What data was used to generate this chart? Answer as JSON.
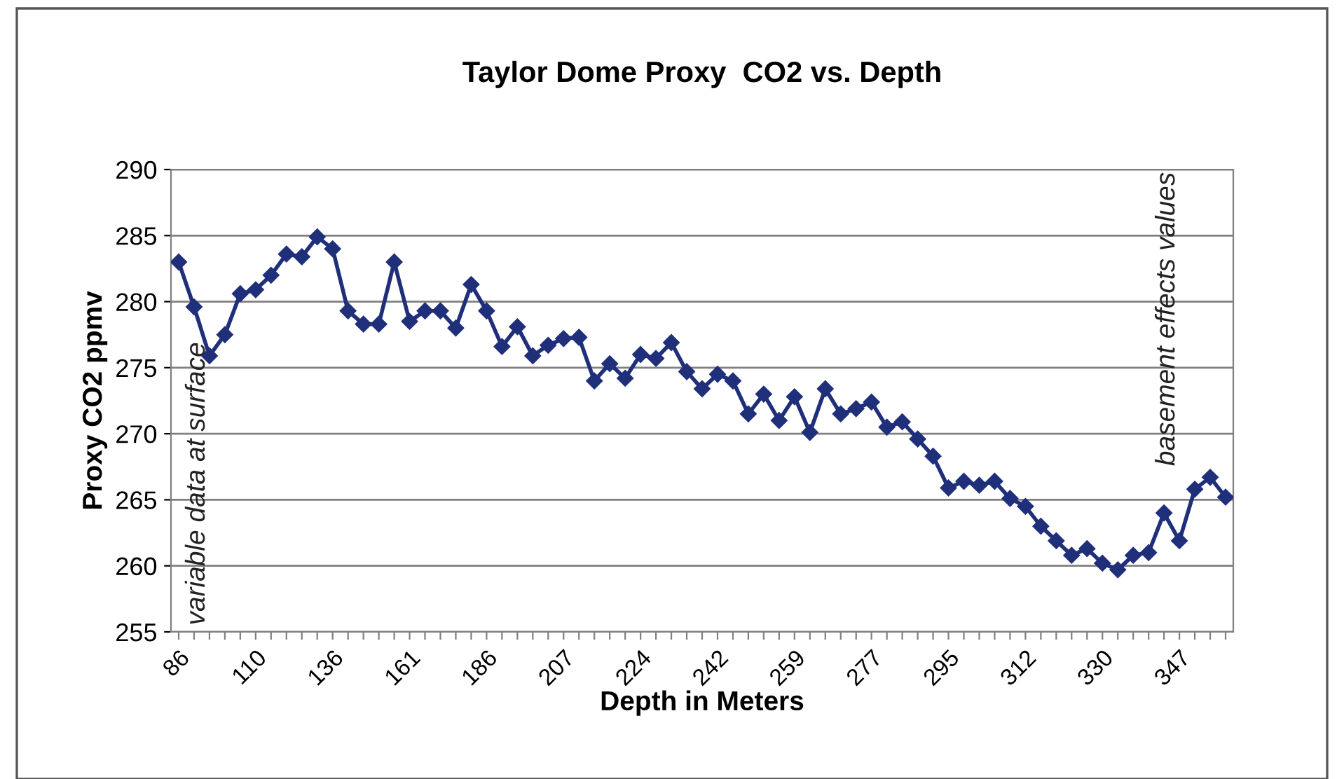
{
  "chart_data": {
    "type": "line",
    "title": "Taylor Dome Proxy  CO2 vs. Depth",
    "xlabel": "Depth in Meters",
    "ylabel": "Proxy CO2 ppmv",
    "categories": [
      "86",
      null,
      null,
      null,
      null,
      "110",
      null,
      null,
      null,
      null,
      "136",
      null,
      null,
      null,
      null,
      "161",
      null,
      null,
      null,
      null,
      "186",
      null,
      null,
      null,
      null,
      "207",
      null,
      null,
      null,
      null,
      "224",
      null,
      null,
      null,
      null,
      "242",
      null,
      null,
      null,
      null,
      "259",
      null,
      null,
      null,
      null,
      "277",
      null,
      null,
      null,
      null,
      "295",
      null,
      null,
      null,
      null,
      "312",
      null,
      null,
      null,
      null,
      "330",
      null,
      null,
      null,
      null,
      "347",
      null,
      null,
      null
    ],
    "series": [
      {
        "color": "#1f2f7a",
        "values": [
          283.0,
          279.6,
          275.9,
          277.5,
          280.6,
          280.9,
          282.0,
          283.6,
          283.4,
          284.9,
          284.0,
          279.3,
          278.3,
          278.3,
          283.0,
          278.5,
          279.3,
          279.3,
          278.0,
          281.3,
          279.3,
          276.6,
          278.1,
          275.9,
          276.7,
          277.2,
          277.3,
          274.0,
          275.3,
          274.2,
          276.0,
          275.7,
          276.9,
          274.7,
          273.4,
          274.5,
          274.0,
          271.5,
          273.0,
          271.0,
          272.8,
          270.1,
          273.4,
          271.5,
          271.9,
          272.4,
          270.5,
          270.9,
          269.6,
          268.3,
          265.9,
          266.4,
          266.1,
          266.4,
          265.1,
          264.5,
          263.0,
          261.9,
          260.8,
          261.3,
          260.2,
          259.7,
          260.8,
          261.0,
          264.0,
          261.9,
          265.8,
          266.7,
          265.2
        ]
      }
    ],
    "ylim": [
      255,
      290
    ],
    "yticks": [
      255,
      260,
      265,
      270,
      275,
      280,
      285,
      290
    ],
    "grid": "y",
    "legend": false,
    "marker": "diamond",
    "line_style": "solid",
    "annotations": [
      "variable data at surface",
      "basement effects values"
    ]
  }
}
